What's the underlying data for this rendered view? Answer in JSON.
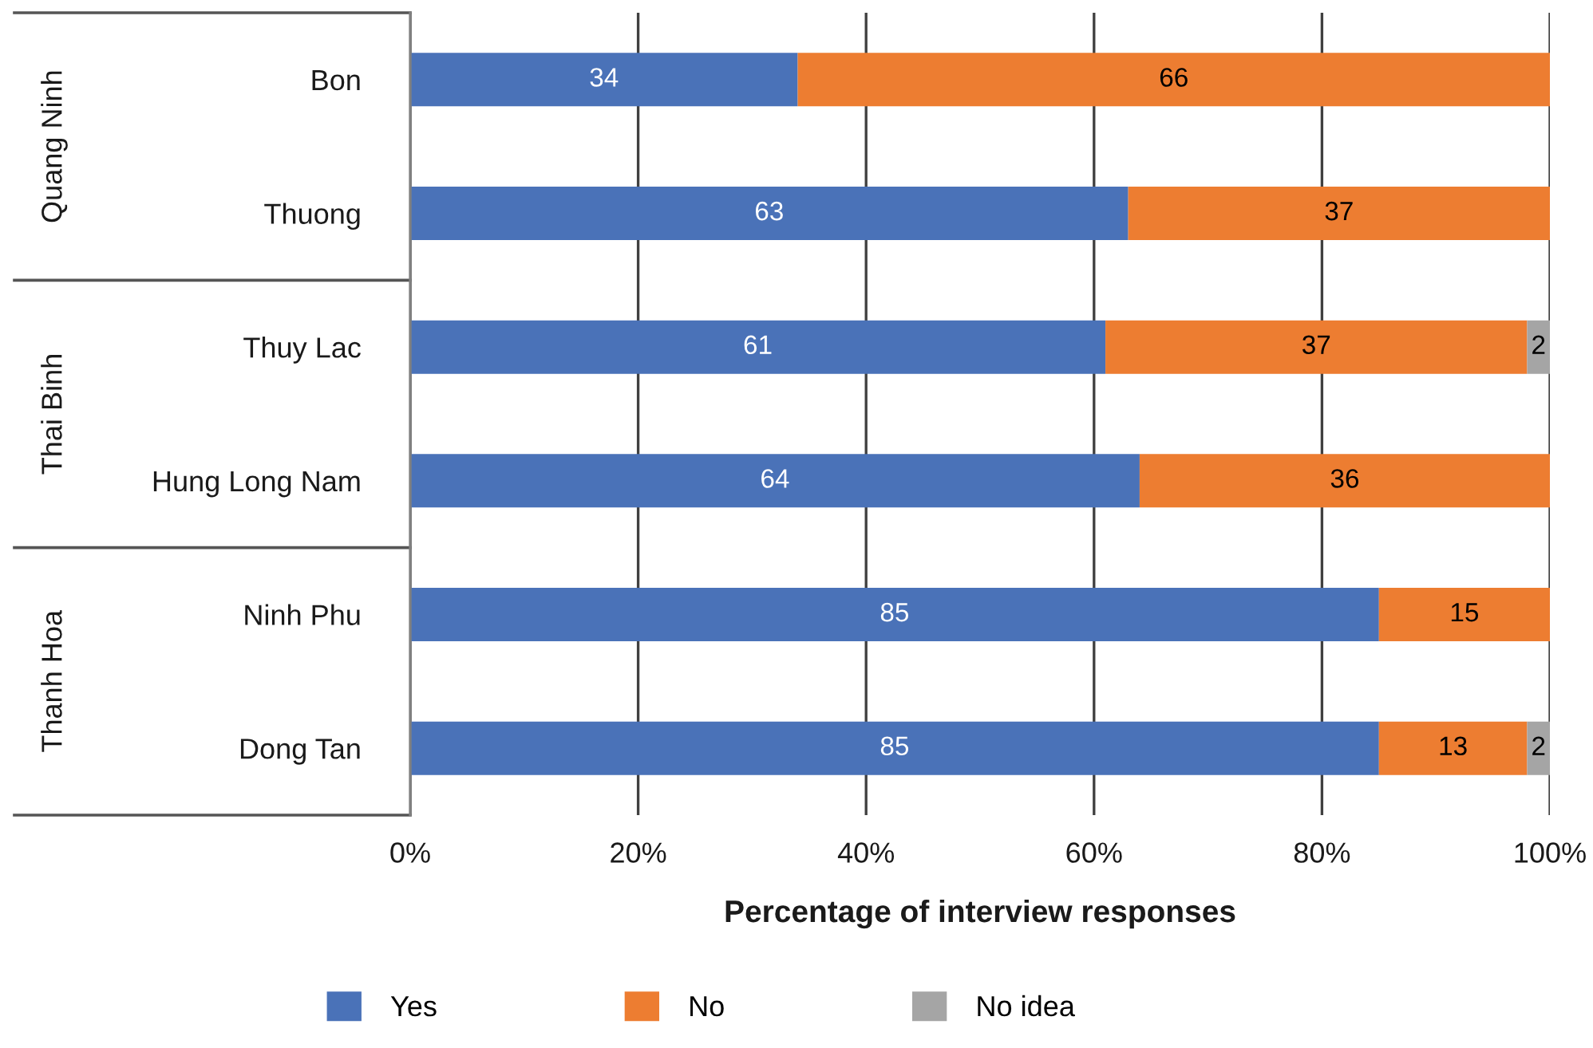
{
  "chart_data": {
    "type": "bar",
    "orientation": "horizontal",
    "stacked": true,
    "categories": [
      "Bon",
      "Thuong",
      "Thuy Lac",
      "Hung Long Nam",
      "Ninh Phu",
      "Dong Tan"
    ],
    "series": [
      {
        "name": "Yes",
        "color": "#4a72b8",
        "values": [
          34,
          63,
          61,
          64,
          85,
          85
        ]
      },
      {
        "name": "No",
        "color": "#ed7d31",
        "values": [
          66,
          37,
          37,
          36,
          15,
          13
        ]
      },
      {
        "name": "No idea",
        "color": "#a5a5a5",
        "values": [
          null,
          null,
          2,
          null,
          null,
          2
        ]
      }
    ],
    "xlabel": "Percentage of interview responses",
    "xlim": [
      0,
      100
    ],
    "xticks": [
      {
        "value": 0,
        "label": "0%"
      },
      {
        "value": 20,
        "label": "20%"
      },
      {
        "value": 40,
        "label": "40%"
      },
      {
        "value": 60,
        "label": "60%"
      },
      {
        "value": 80,
        "label": "80%"
      },
      {
        "value": 100,
        "label": "100%"
      }
    ],
    "grid": "x",
    "legend": "bottom",
    "data_labels": true,
    "annotations": [
      "Quang Ninh",
      "Thai Binh",
      "Thanh Hoa"
    ]
  }
}
